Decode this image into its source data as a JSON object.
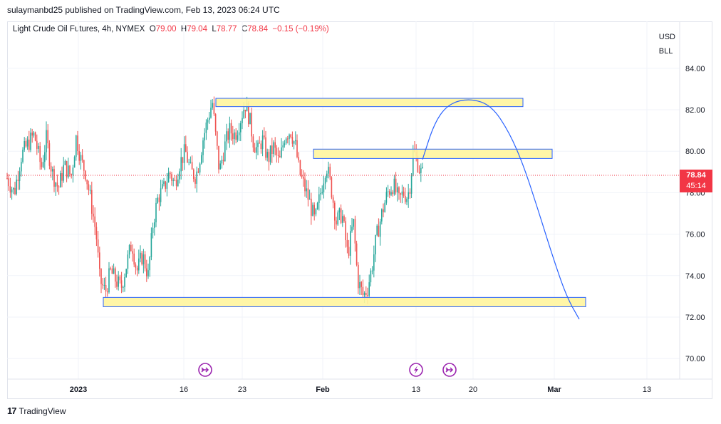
{
  "header": {
    "published": "sulaymanbd25 published on TradingView.com, Feb 13, 2023 06:24 UTC"
  },
  "legend": {
    "symbol": "Light Crude Oil Futures, 4h, NYMEX",
    "o_label": "O",
    "o_value": "79.00",
    "h_label": "H",
    "h_value": "79.04",
    "l_label": "L",
    "l_value": "78.77",
    "c_label": "C",
    "c_value": "78.84",
    "change": "−0.15 (−0.19%)"
  },
  "axis": {
    "currency": "USD",
    "unit": "BLL"
  },
  "price_tag": {
    "price": "78.84",
    "countdown": "45:14"
  },
  "footer": {
    "brand": "TradingView",
    "logo": "17"
  },
  "colors": {
    "up": "#26a69a",
    "down": "#ef5350",
    "zone_fill": "#fff59d",
    "zone_border": "#2962ff",
    "projection": "#2962ff",
    "price_line": "#f23645",
    "event_icon": "#9c27b0"
  },
  "chart_data": {
    "type": "candlestick",
    "symbol": "Light Crude Oil Futures",
    "interval": "4h",
    "exchange": "NYMEX",
    "ylim": [
      69,
      86
    ],
    "y_ticks": [
      "70.00",
      "72.00",
      "74.00",
      "76.00",
      "78.00",
      "80.00",
      "82.00",
      "84.00"
    ],
    "x_ticks": [
      "2023",
      "16",
      "23",
      "Feb",
      "13",
      "20",
      "Mar",
      "13"
    ],
    "last_price": 78.84,
    "price_path": [
      {
        "x": 0,
        "y": 78.7
      },
      {
        "x": 10,
        "y": 78.0
      },
      {
        "x": 20,
        "y": 79.8
      },
      {
        "x": 30,
        "y": 80.4
      },
      {
        "x": 38,
        "y": 80.8
      },
      {
        "x": 48,
        "y": 79.2
      },
      {
        "x": 55,
        "y": 80.6
      },
      {
        "x": 63,
        "y": 79.0
      },
      {
        "x": 72,
        "y": 78.2
      },
      {
        "x": 80,
        "y": 79.3
      },
      {
        "x": 90,
        "y": 78.8
      },
      {
        "x": 97,
        "y": 80.7
      },
      {
        "x": 104,
        "y": 79.5
      },
      {
        "x": 110,
        "y": 79.0
      },
      {
        "x": 118,
        "y": 77.5
      },
      {
        "x": 125,
        "y": 76.0
      },
      {
        "x": 130,
        "y": 73.8
      },
      {
        "x": 138,
        "y": 73.2
      },
      {
        "x": 145,
        "y": 74.2
      },
      {
        "x": 152,
        "y": 73.8
      },
      {
        "x": 160,
        "y": 73.4
      },
      {
        "x": 168,
        "y": 74.6
      },
      {
        "x": 175,
        "y": 75.6
      },
      {
        "x": 182,
        "y": 74.2
      },
      {
        "x": 190,
        "y": 75.0
      },
      {
        "x": 198,
        "y": 74.0
      },
      {
        "x": 205,
        "y": 76.6
      },
      {
        "x": 212,
        "y": 77.8
      },
      {
        "x": 220,
        "y": 78.2
      },
      {
        "x": 228,
        "y": 79.0
      },
      {
        "x": 235,
        "y": 78.4
      },
      {
        "x": 242,
        "y": 79.4
      },
      {
        "x": 250,
        "y": 80.0
      },
      {
        "x": 258,
        "y": 79.0
      },
      {
        "x": 265,
        "y": 78.8
      },
      {
        "x": 270,
        "y": 79.6
      },
      {
        "x": 275,
        "y": 80.6
      },
      {
        "x": 282,
        "y": 81.6
      },
      {
        "x": 288,
        "y": 82.4
      },
      {
        "x": 293,
        "y": 80.6
      },
      {
        "x": 298,
        "y": 79.0
      },
      {
        "x": 305,
        "y": 80.2
      },
      {
        "x": 312,
        "y": 81.0
      },
      {
        "x": 320,
        "y": 80.8
      },
      {
        "x": 328,
        "y": 81.6
      },
      {
        "x": 334,
        "y": 82.3
      },
      {
        "x": 340,
        "y": 81.6
      },
      {
        "x": 346,
        "y": 80.4
      },
      {
        "x": 352,
        "y": 80.0
      },
      {
        "x": 358,
        "y": 80.6
      },
      {
        "x": 366,
        "y": 79.6
      },
      {
        "x": 374,
        "y": 80.2
      },
      {
        "x": 382,
        "y": 79.4
      },
      {
        "x": 390,
        "y": 80.8
      },
      {
        "x": 398,
        "y": 81.0
      },
      {
        "x": 405,
        "y": 80.2
      },
      {
        "x": 410,
        "y": 79.0
      },
      {
        "x": 416,
        "y": 78.4
      },
      {
        "x": 424,
        "y": 77.6
      },
      {
        "x": 432,
        "y": 76.6
      },
      {
        "x": 440,
        "y": 78.0
      },
      {
        "x": 448,
        "y": 79.4
      },
      {
        "x": 455,
        "y": 78.2
      },
      {
        "x": 462,
        "y": 76.6
      },
      {
        "x": 470,
        "y": 77.0
      },
      {
        "x": 478,
        "y": 75.0
      },
      {
        "x": 486,
        "y": 76.6
      },
      {
        "x": 492,
        "y": 73.8
      },
      {
        "x": 500,
        "y": 73.0
      },
      {
        "x": 506,
        "y": 73.4
      },
      {
        "x": 512,
        "y": 74.4
      },
      {
        "x": 518,
        "y": 75.8
      },
      {
        "x": 526,
        "y": 77.0
      },
      {
        "x": 534,
        "y": 78.0
      },
      {
        "x": 542,
        "y": 78.4
      },
      {
        "x": 550,
        "y": 77.6
      },
      {
        "x": 556,
        "y": 78.0
      },
      {
        "x": 562,
        "y": 77.8
      },
      {
        "x": 566,
        "y": 78.5
      },
      {
        "x": 570,
        "y": 80.0
      },
      {
        "x": 575,
        "y": 79.6
      },
      {
        "x": 580,
        "y": 79.0
      },
      {
        "x": 585,
        "y": 78.84
      }
    ],
    "zones": [
      {
        "x_start": 293,
        "x_end": 724,
        "y_low": 82.15,
        "y_high": 82.55
      },
      {
        "x_start": 430,
        "x_end": 765,
        "y_low": 79.65,
        "y_high": 80.1
      },
      {
        "x_start": 135,
        "x_end": 812,
        "y_low": 72.5,
        "y_high": 72.95
      }
    ],
    "projection": [
      {
        "x": 583,
        "y": 79.6
      },
      {
        "x": 600,
        "y": 81.4
      },
      {
        "x": 620,
        "y": 82.3
      },
      {
        "x": 650,
        "y": 82.55
      },
      {
        "x": 680,
        "y": 82.2
      },
      {
        "x": 705,
        "y": 80.9
      },
      {
        "x": 725,
        "y": 79.3
      },
      {
        "x": 745,
        "y": 77.2
      },
      {
        "x": 765,
        "y": 75.0
      },
      {
        "x": 785,
        "y": 73.0
      },
      {
        "x": 803,
        "y": 71.9
      }
    ],
    "events": [
      {
        "x": 288,
        "icon": "arrow-right"
      },
      {
        "x": 584,
        "icon": "lightning"
      },
      {
        "x": 631,
        "icon": "arrow-right"
      }
    ]
  }
}
